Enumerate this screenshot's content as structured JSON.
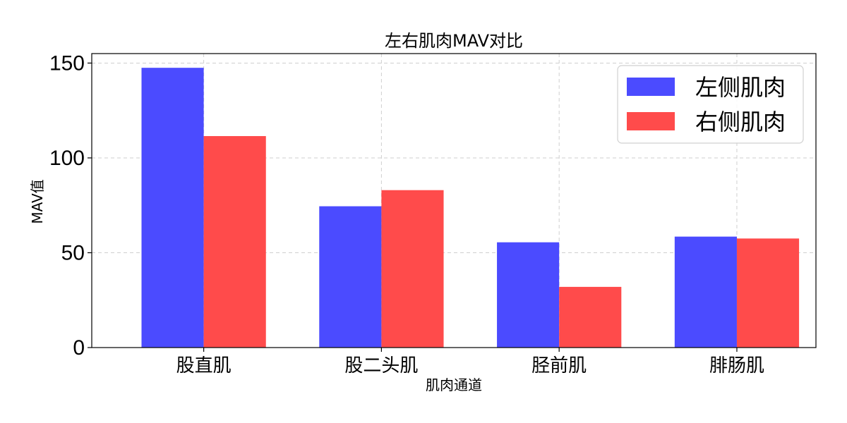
{
  "chart_data": {
    "type": "bar",
    "title": "左右肌肉MAV对比",
    "xlabel": "肌肉通道",
    "ylabel": "MAV值",
    "categories": [
      "股直肌",
      "股二头肌",
      "胫前肌",
      "腓肠肌"
    ],
    "series": [
      {
        "name": "左侧肌肉",
        "color": "#4b4bff",
        "values": [
          147.5,
          74.5,
          55.5,
          58.5
        ]
      },
      {
        "name": "右侧肌肉",
        "color": "#ff4b4b",
        "values": [
          111.5,
          83.0,
          32.0,
          57.5
        ]
      }
    ],
    "ylim": [
      0,
      155
    ],
    "yticks": [
      "0",
      "50",
      "100",
      "150"
    ],
    "grid": true,
    "legend_position": "top-right"
  }
}
